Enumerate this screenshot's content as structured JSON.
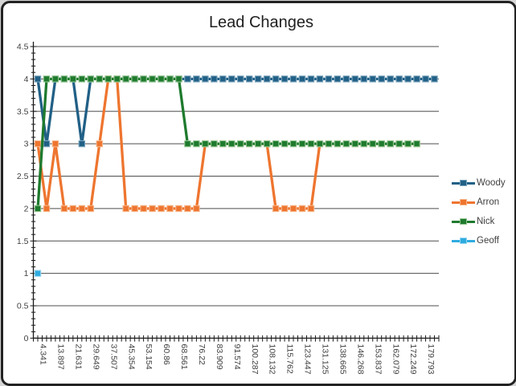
{
  "chart_data": {
    "type": "line",
    "title": "Lead Changes",
    "xlabel": "",
    "ylabel": "",
    "ylim": [
      0,
      4.5
    ],
    "y_tick_step": 0.5,
    "y_minor_tick_step": 0.1,
    "y_tick_labels": [
      "0",
      "0.5",
      "1",
      "1.5",
      "2",
      "2.5",
      "3",
      "3.5",
      "4",
      "4.5"
    ],
    "n_categories": 46,
    "x_label_every_n_categories": 2,
    "x_tick_labels": [
      "4.341",
      "13.897",
      "21.631",
      "29.649",
      "37.507",
      "45.354",
      "53.154",
      "60.86",
      "68.561",
      "76.22",
      "83.909",
      "91.574",
      "100.287",
      "108.132",
      "115.762",
      "123.447",
      "131.125",
      "138.665",
      "146.268",
      "153.837",
      "162.079",
      "172.249",
      "179.793"
    ],
    "grid": true,
    "legend_position": "right",
    "marker": "square",
    "series": [
      {
        "name": "Woody",
        "color": "#216086",
        "marker_edge": "#7da6bd",
        "values": [
          4,
          3,
          4,
          4,
          4,
          3,
          4,
          4,
          4,
          4,
          4,
          4,
          4,
          4,
          4,
          4,
          4,
          4,
          4,
          4,
          4,
          4,
          4,
          4,
          4,
          4,
          4,
          4,
          4,
          4,
          4,
          4,
          4,
          4,
          4,
          4,
          4,
          4,
          4,
          4,
          4,
          4,
          4,
          4,
          4,
          4
        ]
      },
      {
        "name": "Arron",
        "color": "#ee752f",
        "marker_edge": "#f6b68a",
        "values": [
          3,
          2,
          3,
          2,
          2,
          2,
          2,
          3,
          4,
          4,
          2,
          2,
          2,
          2,
          2,
          2,
          2,
          2,
          2,
          3,
          3,
          3,
          3,
          3,
          3,
          3,
          3,
          2,
          2,
          2,
          2,
          2,
          3,
          3,
          3,
          3,
          3,
          3,
          3,
          3,
          3,
          3,
          3,
          3
        ]
      },
      {
        "name": "Nick",
        "color": "#1e7a2e",
        "marker_edge": "#93c48e",
        "values": [
          2,
          4,
          4,
          4,
          4,
          4,
          4,
          4,
          4,
          4,
          4,
          4,
          4,
          4,
          4,
          4,
          4,
          3,
          3,
          3,
          3,
          3,
          3,
          3,
          3,
          3,
          3,
          3,
          3,
          3,
          3,
          3,
          3,
          3,
          3,
          3,
          3,
          3,
          3,
          3,
          3,
          3,
          3,
          3
        ]
      },
      {
        "name": "Geoff",
        "color": "#2fabdf",
        "marker_edge": "#96d5f0",
        "values": [
          1
        ]
      }
    ],
    "colors": {
      "gridline": "#4d4d4d",
      "axis": "#1a1a1a",
      "tick": "#1a1a1a",
      "text": "#3f3f3f",
      "title": "#1f1f1f"
    }
  }
}
